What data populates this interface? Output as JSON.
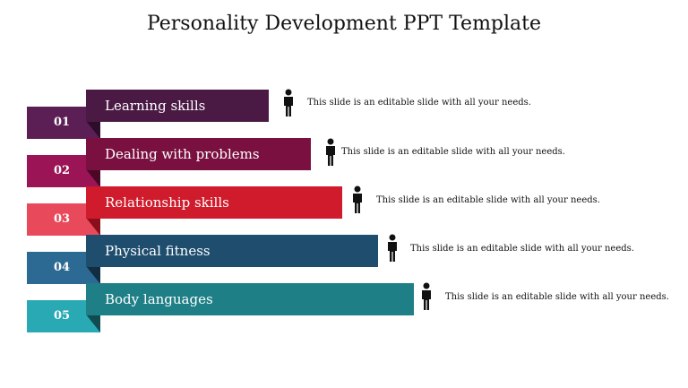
{
  "title": "Personality Development PPT Template",
  "items": [
    {
      "number": "01",
      "label": "Learning skills",
      "description": "This slide is an editable slide with all your needs.",
      "bar_color": "#4a1a45",
      "tab_color": "#5c1f55",
      "fold_color": "#2e0d2b"
    },
    {
      "number": "02",
      "label": "Dealing with problems",
      "description": "This slide is an editable slide with all your needs.",
      "bar_color": "#7a1040",
      "tab_color": "#9a1456",
      "fold_color": "#4a0826"
    },
    {
      "number": "03",
      "label": "Relationship skills",
      "description": "This slide is an editable slide with all your needs.",
      "bar_color": "#cf1b2b",
      "tab_color": "#e84a5c",
      "fold_color": "#8a0f1b"
    },
    {
      "number": "04",
      "label": "Physical fitness",
      "description": "This slide is an editable slide with all your needs.",
      "bar_color": "#1e4d6e",
      "tab_color": "#2d6a93",
      "fold_color": "#102d42"
    },
    {
      "number": "05",
      "label": "Body languages",
      "description": "This slide is an editable slide with all your needs.",
      "bar_color": "#1e7f86",
      "tab_color": "#29a9b3",
      "fold_color": "#0f4b50"
    }
  ],
  "icons": {
    "person": "person-icon"
  }
}
